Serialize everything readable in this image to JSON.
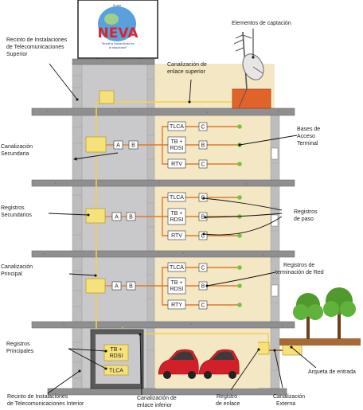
{
  "logo": {
    "name": "NEVA",
    "top_text": "Grupo",
    "tagline_1": "\"Nuestra tranquilidad es",
    "tagline_2": "la seguridad\""
  },
  "labels": {
    "recinto_superior": [
      "Recinto de Instalaciones",
      "de Telecomunicaciones",
      "Superior"
    ],
    "elementos_captacion": "Elementos de captación",
    "canalizacion_enlace_superior": [
      "Canalización de",
      "enlace superior"
    ],
    "bases_acceso": [
      "Bases de",
      "Acceso",
      "Terminal"
    ],
    "canalizacion_secundaria": [
      "Canalización",
      "Secundaria"
    ],
    "registros_secundarios": [
      "Registros",
      "Secundarios"
    ],
    "registros_paso": [
      "Registros",
      "de paso"
    ],
    "canalizacion_principal": [
      "Canalización",
      "Principal"
    ],
    "registros_terminacion": [
      "Registros de",
      "terminación de Red"
    ],
    "registros_principales": [
      "Registros",
      "Principales"
    ],
    "arqueta_entrada": "Arqueta de entrada",
    "recinto_inferior": [
      "Recinto de Instalaciones",
      "de Telecomunicaciones Interior"
    ],
    "canalizacion_enlace_inferior": [
      "Canalización de",
      "enlace inferior"
    ],
    "registro_enlace": [
      "Registro",
      "de enlace"
    ],
    "canalizacion_externa": [
      "Canalización",
      "Externa"
    ]
  },
  "boxes": {
    "a": "A",
    "b": "B",
    "c": "C",
    "tlca": "TLCA",
    "tb_rdsi": [
      "TB +",
      "RDSI"
    ],
    "rtv": "RTV",
    "rty": "RTY"
  },
  "colors": {
    "building_left": "#c9c9cb",
    "building_right": "#f3e7c4",
    "slab": "#8f8f8f",
    "brick": "#bdbdbd",
    "orange_cable": "#e07a2a",
    "yellow_cable": "#f2d24a",
    "green_dot": "#7ac143",
    "rooftop_box": "#e2632a",
    "car": "#d21f2a",
    "tree": "#4f9a2b",
    "ground": "#a56a35"
  }
}
